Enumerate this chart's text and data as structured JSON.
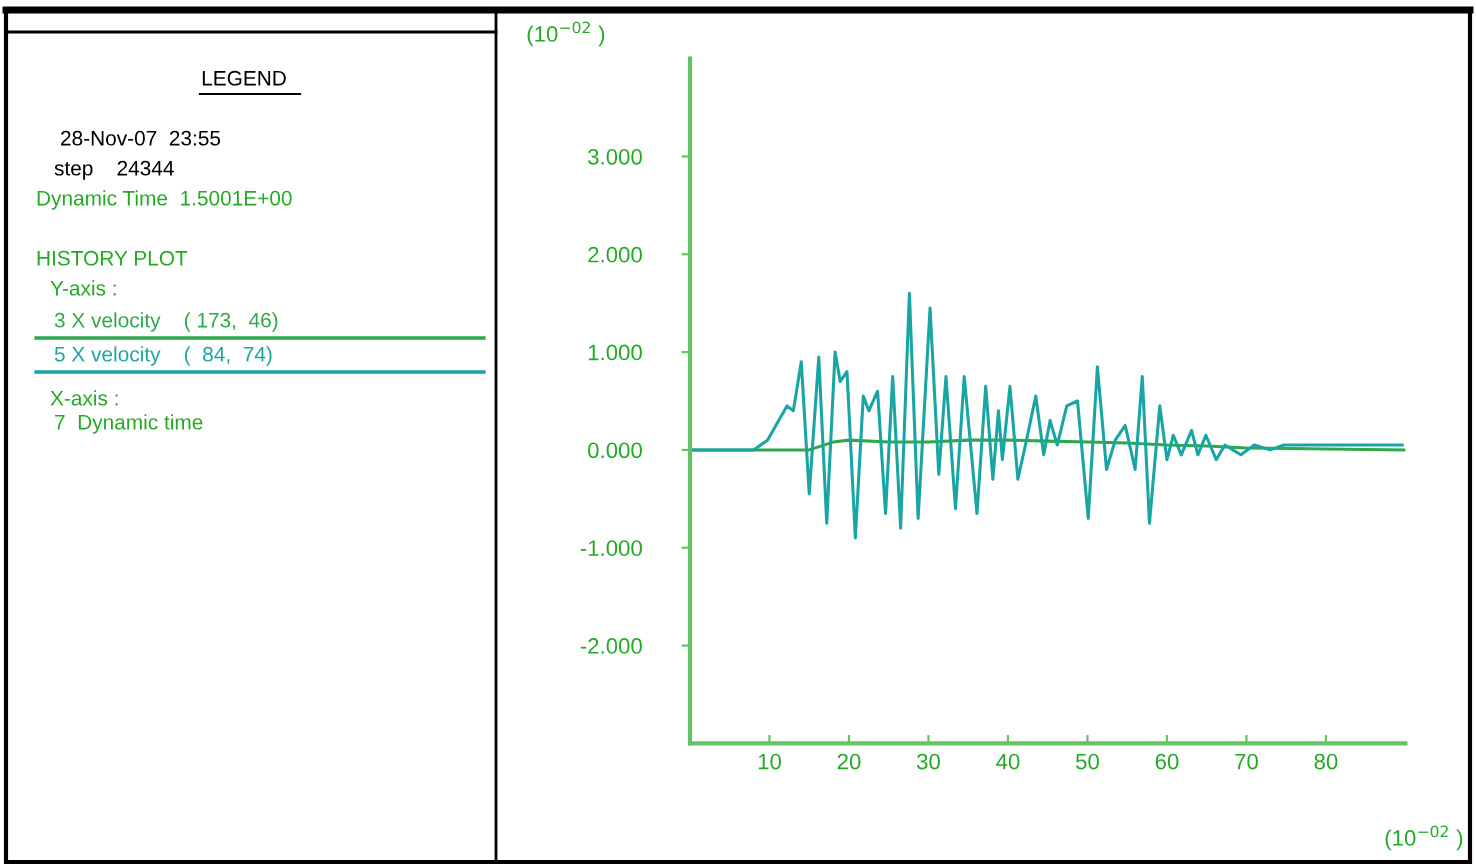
{
  "chart_data": {
    "type": "line",
    "legend_title": "LEGEND",
    "annotations": [
      "28-Nov-07  23:55",
      "step    24344",
      "Dynamic Time  1.5001E+00",
      "HISTORY PLOT",
      "Y-axis :",
      "X-axis :",
      "7  Dynamic time"
    ],
    "ylabel": "(10$^{−02}$ )",
    "xlabel": "(10$^{−02}$ )",
    "xlim": [
      0,
      90
    ],
    "ylim": [
      -3,
      4
    ],
    "xticks": [
      10,
      20,
      30,
      40,
      50,
      60,
      70,
      80
    ],
    "yticks": [
      {
        "value": -2,
        "label": "-2.000"
      },
      {
        "value": -1,
        "label": "-1.000"
      },
      {
        "value": 0,
        "label": "0.000"
      },
      {
        "value": 1,
        "label": "1.000"
      },
      {
        "value": 2,
        "label": "2.000"
      },
      {
        "value": 3,
        "label": "3.000"
      }
    ],
    "grid": false,
    "legend": "left",
    "series": [
      {
        "name": "3 X velocity    ( 173,  46)",
        "color": "#2ea84a",
        "x": [
          0,
          15,
          18,
          20,
          25,
          30,
          35,
          40,
          45,
          50,
          55,
          60,
          65,
          70,
          80,
          90
        ],
        "values": [
          0,
          0,
          0.08,
          0.1,
          0.08,
          0.08,
          0.1,
          0.1,
          0.09,
          0.08,
          0.07,
          0.05,
          0.04,
          0.02,
          0.01,
          0
        ]
      },
      {
        "name": "5 X velocity    (  84,  74)",
        "color": "#1aa5a5",
        "x": [
          0,
          8,
          9.75,
          12.2,
          13,
          14,
          15,
          16.2,
          17.2,
          18.25,
          18.9,
          19.75,
          20.8,
          21.8,
          22.5,
          23.6,
          24.6,
          25.5,
          26.5,
          27.6,
          28.7,
          30.2,
          31.3,
          32.2,
          33.4,
          34.5,
          36.1,
          37.2,
          38.1,
          38.8,
          39.3,
          40.25,
          41.25,
          42.2,
          43.5,
          44.5,
          45.3,
          46.2,
          47.4,
          48.75,
          50.1,
          51.25,
          52.4,
          53.5,
          54.75,
          56,
          56.9,
          57.8,
          59.1,
          60,
          60.8,
          61.8,
          63.1,
          63.9,
          64.9,
          66.2,
          67.3,
          69.3,
          71,
          73,
          74.7,
          80.5,
          89.6
        ],
        "values": [
          0,
          0,
          0.1,
          0.45,
          0.4,
          0.9,
          -0.45,
          0.95,
          -0.75,
          1.0,
          0.7,
          0.8,
          -0.9,
          0.55,
          0.4,
          0.6,
          -0.65,
          0.75,
          -0.8,
          1.6,
          -0.7,
          1.45,
          -0.25,
          0.75,
          -0.6,
          0.75,
          -0.65,
          0.65,
          -0.3,
          0.4,
          -0.1,
          0.65,
          -0.3,
          0.05,
          0.55,
          -0.05,
          0.3,
          0.05,
          0.45,
          0.5,
          -0.7,
          0.85,
          -0.2,
          0.1,
          0.25,
          -0.2,
          0.75,
          -0.75,
          0.45,
          -0.1,
          0.15,
          -0.05,
          0.2,
          -0.05,
          0.15,
          -0.1,
          0.05,
          -0.05,
          0.05,
          0,
          0.05,
          0.05,
          0.05
        ]
      }
    ]
  }
}
